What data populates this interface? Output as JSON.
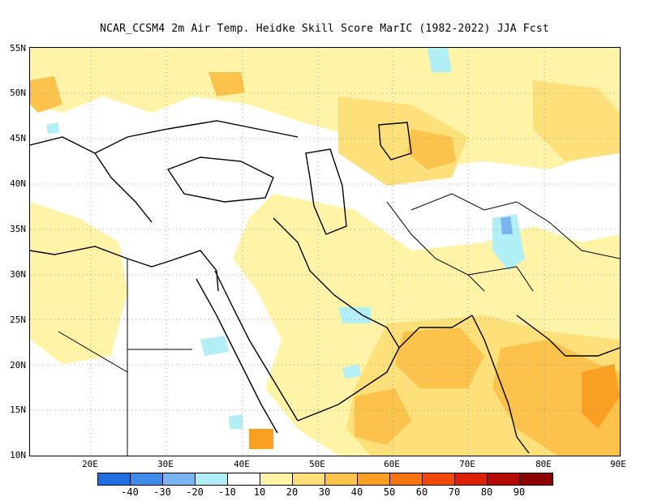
{
  "title": "NCAR_CCSM4  2m Air Temp. Heidke Skill Score MarIC (1982-2022) JJA Fcst",
  "lat_labels": [
    "55N",
    "50N",
    "45N",
    "40N",
    "35N",
    "30N",
    "25N",
    "20N",
    "15N",
    "10N"
  ],
  "lon_labels": [
    "20E",
    "30E",
    "40E",
    "50E",
    "60E",
    "70E",
    "80E",
    "90E"
  ],
  "colorbar": {
    "labels": [
      "-40",
      "-30",
      "-20",
      "-10",
      "10",
      "20",
      "30",
      "40",
      "50",
      "60",
      "70",
      "80",
      "90"
    ],
    "colors": [
      "#1f6fe0",
      "#3f8be8",
      "#79b3f2",
      "#b1eef6",
      "#ffffff",
      "#fff3a8",
      "#fde07a",
      "#fbc24c",
      "#f9a020",
      "#f77410",
      "#f24808",
      "#dc2004",
      "#b40c02",
      "#8c0000"
    ]
  },
  "map": {
    "lon_range": [
      12,
      90
    ],
    "lat_range": [
      10,
      55
    ],
    "projection": "lat-lon"
  }
}
